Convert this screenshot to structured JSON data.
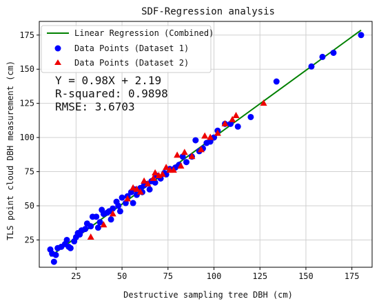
{
  "chart_data": {
    "type": "scatter",
    "title": "SDF-Regression analysis",
    "xlabel": "Destructive sampling tree DBH (cm)",
    "ylabel": "TLS point cloud DBH measurement (cm)",
    "xlim": [
      5,
      186
    ],
    "ylim": [
      5,
      185
    ],
    "xticks": [
      25,
      50,
      75,
      100,
      125,
      150,
      175
    ],
    "yticks": [
      25,
      50,
      75,
      100,
      125,
      150,
      175
    ],
    "grid": true,
    "legend_position": "top-left",
    "regression": {
      "name": "Linear Regression (Combined)",
      "color": "#008000",
      "slope": 0.98,
      "intercept": 2.19,
      "x_range": [
        11,
        180
      ]
    },
    "stats_text": [
      "Y = 0.98X + 2.19",
      "R-squared: 0.9898",
      "RMSE: 3.6703"
    ],
    "series": [
      {
        "name": "Data Points (Dataset 1)",
        "marker": "circle",
        "color": "#0000ff",
        "points": [
          [
            11,
            18
          ],
          [
            12,
            15
          ],
          [
            13,
            9
          ],
          [
            14,
            14
          ],
          [
            15,
            19
          ],
          [
            17,
            20
          ],
          [
            19,
            22
          ],
          [
            20,
            25
          ],
          [
            21,
            20
          ],
          [
            22,
            19
          ],
          [
            24,
            24
          ],
          [
            25,
            27
          ],
          [
            26,
            30
          ],
          [
            27,
            29
          ],
          [
            28,
            32
          ],
          [
            30,
            33
          ],
          [
            31,
            37
          ],
          [
            33,
            35
          ],
          [
            34,
            42
          ],
          [
            36,
            42
          ],
          [
            37,
            34
          ],
          [
            38,
            38
          ],
          [
            39,
            47
          ],
          [
            40,
            44
          ],
          [
            42,
            45
          ],
          [
            43,
            46
          ],
          [
            44,
            40
          ],
          [
            45,
            48
          ],
          [
            47,
            53
          ],
          [
            48,
            50
          ],
          [
            49,
            46
          ],
          [
            50,
            56
          ],
          [
            52,
            52
          ],
          [
            53,
            57
          ],
          [
            55,
            60
          ],
          [
            56,
            52
          ],
          [
            57,
            62
          ],
          [
            58,
            58
          ],
          [
            60,
            63
          ],
          [
            61,
            60
          ],
          [
            62,
            65
          ],
          [
            63,
            66
          ],
          [
            65,
            62
          ],
          [
            66,
            68
          ],
          [
            68,
            67
          ],
          [
            69,
            72
          ],
          [
            71,
            70
          ],
          [
            73,
            74
          ],
          [
            74,
            73
          ],
          [
            76,
            77
          ],
          [
            79,
            78
          ],
          [
            81,
            80
          ],
          [
            83,
            86
          ],
          [
            85,
            82
          ],
          [
            88,
            86
          ],
          [
            90,
            98
          ],
          [
            92,
            90
          ],
          [
            94,
            92
          ],
          [
            96,
            96
          ],
          [
            98,
            97
          ],
          [
            100,
            100
          ],
          [
            102,
            105
          ],
          [
            106,
            110
          ],
          [
            109,
            110
          ],
          [
            113,
            108
          ],
          [
            120,
            115
          ],
          [
            134,
            141
          ],
          [
            153,
            152
          ],
          [
            159,
            159
          ],
          [
            165,
            162
          ],
          [
            180,
            175
          ]
        ]
      },
      {
        "name": "Data Points (Dataset 2)",
        "marker": "triangle",
        "color": "#ee0000",
        "points": [
          [
            33,
            27
          ],
          [
            40,
            36
          ],
          [
            45,
            44
          ],
          [
            53,
            55
          ],
          [
            56,
            63
          ],
          [
            58,
            62
          ],
          [
            60,
            60
          ],
          [
            62,
            68
          ],
          [
            64,
            66
          ],
          [
            67,
            70
          ],
          [
            68,
            74
          ],
          [
            70,
            72
          ],
          [
            72,
            73
          ],
          [
            74,
            78
          ],
          [
            76,
            76
          ],
          [
            78,
            76
          ],
          [
            80,
            87
          ],
          [
            82,
            79
          ],
          [
            84,
            89
          ],
          [
            88,
            86
          ],
          [
            93,
            91
          ],
          [
            95,
            101
          ],
          [
            98,
            100
          ],
          [
            102,
            103
          ],
          [
            106,
            110
          ],
          [
            110,
            113
          ],
          [
            112,
            116
          ],
          [
            127,
            125
          ]
        ]
      }
    ]
  }
}
